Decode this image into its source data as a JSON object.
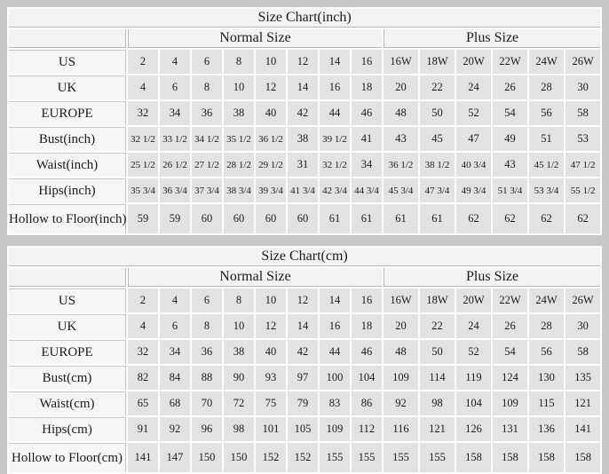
{
  "page_background": "#c7c7c7",
  "colors": {
    "cell_bg": "#e2e2e2",
    "label_bg": "#f6f6f6",
    "header_bg": "#f3f3f3",
    "grid_line": "#b9b9b9",
    "text": "#1c1c1c"
  },
  "tables": [
    {
      "title": "Size Chart(inch)",
      "normal_label": "Normal Size",
      "plus_label": "Plus Size",
      "rows": [
        {
          "label": "US",
          "normal": [
            "2",
            "4",
            "6",
            "8",
            "10",
            "12",
            "14",
            "16"
          ],
          "plus": [
            "16W",
            "18W",
            "20W",
            "22W",
            "24W",
            "26W"
          ]
        },
        {
          "label": "UK",
          "normal": [
            "4",
            "6",
            "8",
            "10",
            "12",
            "14",
            "16",
            "18"
          ],
          "plus": [
            "20",
            "22",
            "24",
            "26",
            "28",
            "30"
          ]
        },
        {
          "label": "EUROPE",
          "normal": [
            "32",
            "34",
            "36",
            "38",
            "40",
            "42",
            "44",
            "46"
          ],
          "plus": [
            "48",
            "50",
            "52",
            "54",
            "56",
            "58"
          ]
        },
        {
          "label": "Bust(inch)",
          "normal": [
            "32 1/2",
            "33 1/2",
            "34 1/2",
            "35 1/2",
            "36 1/2",
            "38",
            "39 1/2",
            "41"
          ],
          "plus": [
            "43",
            "45",
            "47",
            "49",
            "51",
            "53"
          ]
        },
        {
          "label": "Waist(inch)",
          "normal": [
            "25 1/2",
            "26 1/2",
            "27 1/2",
            "28 1/2",
            "29 1/2",
            "31",
            "32 1/2",
            "34"
          ],
          "plus": [
            "36 1/2",
            "38 1/2",
            "40 3/4",
            "43",
            "45 1/2",
            "47 1/2"
          ]
        },
        {
          "label": "Hips(inch)",
          "normal": [
            "35 3/4",
            "36 3/4",
            "37 3/4",
            "38 3/4",
            "39 3/4",
            "41 3/4",
            "42 3/4",
            "44 3/4"
          ],
          "plus": [
            "45 3/4",
            "47 3/4",
            "49 3/4",
            "51 3/4",
            "53 3/4",
            "55 1/2"
          ]
        },
        {
          "label": "Hollow to Floor(inch)",
          "normal": [
            "59",
            "59",
            "60",
            "60",
            "60",
            "60",
            "61",
            "61"
          ],
          "plus": [
            "61",
            "61",
            "62",
            "62",
            "62",
            "62"
          ]
        }
      ]
    },
    {
      "title": "Size Chart(cm)",
      "normal_label": "Normal Size",
      "plus_label": "Plus Size",
      "rows": [
        {
          "label": "US",
          "normal": [
            "2",
            "4",
            "6",
            "8",
            "10",
            "12",
            "14",
            "16"
          ],
          "plus": [
            "16W",
            "18W",
            "20W",
            "22W",
            "24W",
            "26W"
          ]
        },
        {
          "label": "UK",
          "normal": [
            "4",
            "6",
            "8",
            "10",
            "12",
            "14",
            "16",
            "18"
          ],
          "plus": [
            "20",
            "22",
            "24",
            "26",
            "28",
            "30"
          ]
        },
        {
          "label": "EUROPE",
          "normal": [
            "32",
            "34",
            "36",
            "38",
            "40",
            "42",
            "44",
            "46"
          ],
          "plus": [
            "48",
            "50",
            "52",
            "54",
            "56",
            "58"
          ]
        },
        {
          "label": "Bust(cm)",
          "normal": [
            "82",
            "84",
            "88",
            "90",
            "93",
            "97",
            "100",
            "104"
          ],
          "plus": [
            "109",
            "114",
            "119",
            "124",
            "130",
            "135"
          ]
        },
        {
          "label": "Waist(cm)",
          "normal": [
            "65",
            "68",
            "70",
            "72",
            "75",
            "79",
            "83",
            "86"
          ],
          "plus": [
            "92",
            "98",
            "104",
            "109",
            "115",
            "121"
          ]
        },
        {
          "label": "Hips(cm)",
          "normal": [
            "91",
            "92",
            "96",
            "98",
            "101",
            "105",
            "109",
            "112"
          ],
          "plus": [
            "116",
            "121",
            "126",
            "131",
            "136",
            "141"
          ]
        },
        {
          "label": "Hollow to Floor(cm)",
          "normal": [
            "141",
            "147",
            "150",
            "150",
            "152",
            "152",
            "155",
            "155"
          ],
          "plus": [
            "155",
            "155",
            "158",
            "158",
            "158",
            "158"
          ]
        }
      ]
    }
  ]
}
